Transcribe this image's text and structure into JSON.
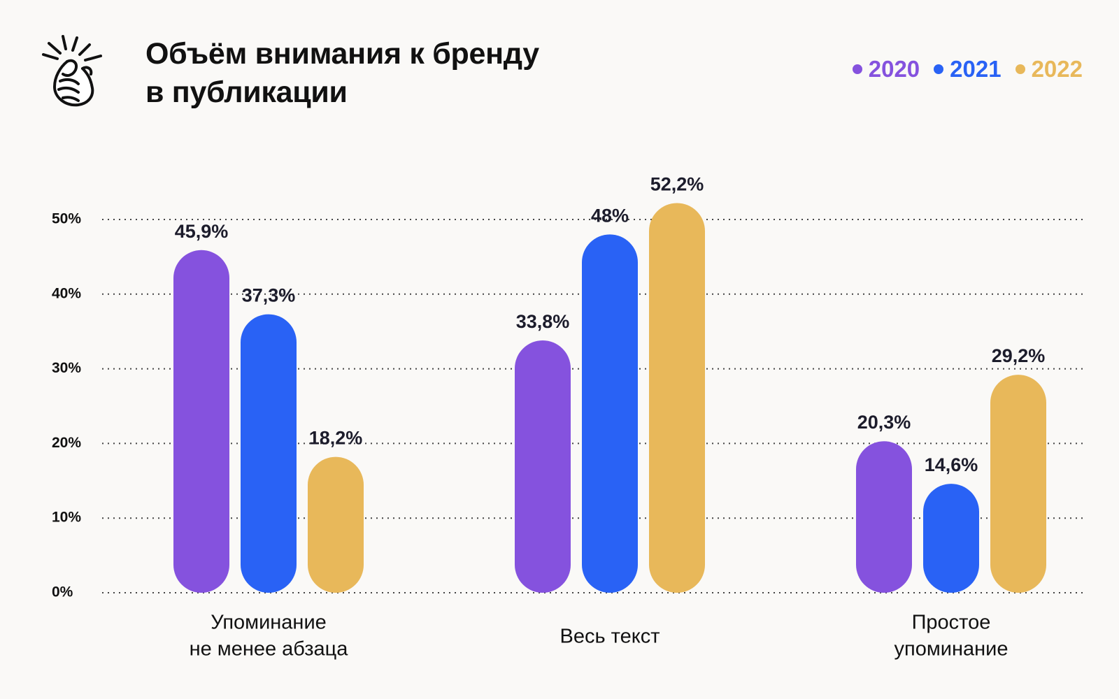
{
  "header": {
    "title_line1": "Объём внимания к бренду",
    "title_line2": "в публикации"
  },
  "legend": [
    {
      "label": "2020",
      "color": "#8552de"
    },
    {
      "label": "2021",
      "color": "#2962f5"
    },
    {
      "label": "2022",
      "color": "#e8b85a"
    }
  ],
  "chart_data": {
    "type": "bar",
    "title": "Объём внимания к бренду в публикации",
    "xlabel": "",
    "ylabel": "",
    "ylim": [
      0,
      50
    ],
    "yticks": [
      "0%",
      "10%",
      "20%",
      "30%",
      "40%",
      "50%"
    ],
    "grid": true,
    "legend_position": "top-right",
    "categories": [
      [
        "Упоминание",
        "не менее абзаца"
      ],
      [
        "Весь текст"
      ],
      [
        "Простое",
        "упоминание"
      ]
    ],
    "series": [
      {
        "name": "2020",
        "color": "#8552de",
        "values": [
          45.9,
          33.8,
          20.3
        ],
        "labels": [
          "45,9%",
          "33,8%",
          "20,3%"
        ]
      },
      {
        "name": "2021",
        "color": "#2962f5",
        "values": [
          37.3,
          48,
          14.6
        ],
        "labels": [
          "37,3%",
          "48%",
          "14,6%"
        ]
      },
      {
        "name": "2022",
        "color": "#e8b85a",
        "values": [
          18.2,
          52.2,
          29.2
        ],
        "labels": [
          "18,2%",
          "52,2%",
          "29,2%"
        ]
      }
    ]
  }
}
